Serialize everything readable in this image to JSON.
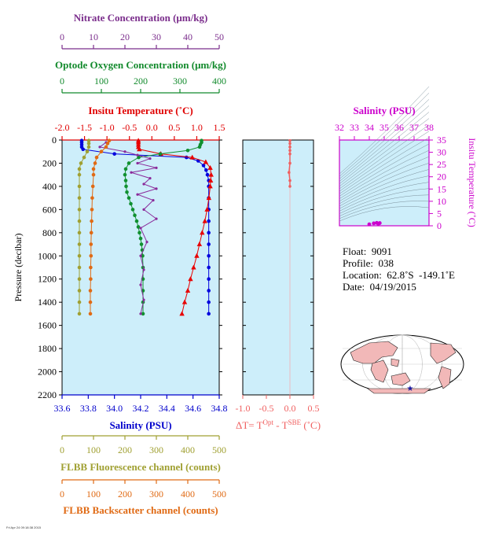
{
  "chart_data": {
    "type": "scatter",
    "main_panel": {
      "ylabel": "Pressure (decibar)",
      "ylim": [
        0,
        2200
      ],
      "yticks": [
        0,
        200,
        400,
        600,
        800,
        1000,
        1200,
        1400,
        1600,
        1800,
        2000,
        2200
      ],
      "background": "#cdeefa",
      "axes": {
        "nitrate": {
          "label": "Nitrate Concentration (μm/kg)",
          "ticks": [
            0,
            10,
            20,
            30,
            40,
            50
          ],
          "range": [
            0,
            50
          ],
          "color": "#7b2e8c"
        },
        "oxygen": {
          "label": "Optode Oxygen Concentration (μm/kg)",
          "ticks": [
            0,
            100,
            200,
            300,
            400
          ],
          "range": [
            0,
            400
          ],
          "color": "#128a2c"
        },
        "temperature": {
          "label": "Insitu Temperature (˚C)",
          "ticks": [
            "-2.0",
            "-1.5",
            "-1.0",
            "-0.5",
            "0.0",
            "0.5",
            "1.0",
            "1.5"
          ],
          "range": [
            -2.0,
            1.5
          ],
          "color": "#e00000"
        },
        "salinity": {
          "label": "Salinity (PSU)",
          "ticks": [
            "33.6",
            "33.8",
            "34.0",
            "34.2",
            "34.4",
            "34.6",
            "34.8"
          ],
          "range": [
            33.6,
            34.8
          ],
          "color": "#0000cc"
        },
        "fluorescence": {
          "label": "FLBB Fluorescence channel (counts)",
          "ticks": [
            0,
            100,
            200,
            300,
            400,
            500
          ],
          "range": [
            0,
            500
          ],
          "color": "#a0a032"
        },
        "backscatter": {
          "label": "FLBB Backscatter channel (counts)",
          "ticks": [
            0,
            100,
            200,
            300,
            400,
            500
          ],
          "range": [
            0,
            500
          ],
          "color": "#e06a14"
        }
      },
      "series": [
        {
          "name": "Salinity",
          "axis": "salinity",
          "color": "#0000dd",
          "marker": "circle",
          "points": [
            [
              33.75,
              5
            ],
            [
              33.75,
              20
            ],
            [
              33.75,
              40
            ],
            [
              33.75,
              60
            ],
            [
              33.76,
              80
            ],
            [
              34.0,
              120
            ],
            [
              34.55,
              150
            ],
            [
              34.64,
              180
            ],
            [
              34.68,
              220
            ],
            [
              34.7,
              260
            ],
            [
              34.71,
              300
            ],
            [
              34.72,
              350
            ],
            [
              34.72,
              400
            ],
            [
              34.72,
              500
            ],
            [
              34.72,
              600
            ],
            [
              34.72,
              700
            ],
            [
              34.72,
              800
            ],
            [
              34.72,
              900
            ],
            [
              34.72,
              1000
            ],
            [
              34.72,
              1100
            ],
            [
              34.72,
              1200
            ],
            [
              34.72,
              1300
            ],
            [
              34.72,
              1400
            ],
            [
              34.72,
              1500
            ]
          ]
        },
        {
          "name": "Temperature",
          "axis": "temperature",
          "color": "#e80000",
          "marker": "triangle",
          "points": [
            [
              -0.3,
              5
            ],
            [
              -0.3,
              20
            ],
            [
              -0.3,
              40
            ],
            [
              -0.3,
              60
            ],
            [
              -0.28,
              80
            ],
            [
              0.2,
              120
            ],
            [
              0.9,
              150
            ],
            [
              1.2,
              190
            ],
            [
              1.3,
              240
            ],
            [
              1.32,
              300
            ],
            [
              1.31,
              350
            ],
            [
              1.3,
              400
            ],
            [
              1.27,
              500
            ],
            [
              1.23,
              600
            ],
            [
              1.18,
              700
            ],
            [
              1.12,
              800
            ],
            [
              1.06,
              900
            ],
            [
              1.0,
              1000
            ],
            [
              0.93,
              1100
            ],
            [
              0.86,
              1200
            ],
            [
              0.8,
              1300
            ],
            [
              0.73,
              1400
            ],
            [
              0.67,
              1500
            ]
          ]
        },
        {
          "name": "Oxygen",
          "axis": "oxygen",
          "color": "#109030",
          "marker": "circle",
          "points": [
            [
              355,
              5
            ],
            [
              355,
              20
            ],
            [
              352,
              40
            ],
            [
              350,
              60
            ],
            [
              320,
              90
            ],
            [
              250,
              120
            ],
            [
              195,
              150
            ],
            [
              170,
              200
            ],
            [
              162,
              250
            ],
            [
              160,
              300
            ],
            [
              162,
              350
            ],
            [
              163,
              400
            ],
            [
              165,
              450
            ],
            [
              170,
              500
            ],
            [
              175,
              550
            ],
            [
              180,
              600
            ],
            [
              185,
              650
            ],
            [
              190,
              700
            ],
            [
              194,
              750
            ],
            [
              197,
              800
            ],
            [
              200,
              850
            ],
            [
              202,
              900
            ],
            [
              204,
              950
            ],
            [
              205,
              1000
            ],
            [
              206,
              1100
            ],
            [
              206,
              1200
            ],
            [
              206,
              1300
            ],
            [
              206,
              1400
            ],
            [
              206,
              1500
            ]
          ]
        },
        {
          "name": "Nitrate",
          "axis": "nitrate",
          "color": "#8a2a9a",
          "marker": "circle",
          "points": [
            [
              14,
              20
            ],
            [
              12,
              60
            ],
            [
              20,
              100
            ],
            [
              24,
              130
            ],
            [
              28,
              160
            ],
            [
              24,
              200
            ],
            [
              30,
              240
            ],
            [
              22,
              280
            ],
            [
              28,
              330
            ],
            [
              26,
              380
            ],
            [
              30,
              420
            ],
            [
              24,
              470
            ],
            [
              29,
              520
            ],
            [
              26,
              600
            ],
            [
              30,
              680
            ],
            [
              25,
              760
            ],
            [
              27,
              880
            ],
            [
              25,
              1000
            ],
            [
              26,
              1120
            ],
            [
              25,
              1250
            ],
            [
              26,
              1380
            ],
            [
              25,
              1500
            ]
          ]
        },
        {
          "name": "Fluorescence",
          "axis": "fluorescence",
          "color": "#a0a032",
          "marker": "circle",
          "points": [
            [
              85,
              5
            ],
            [
              85,
              30
            ],
            [
              85,
              60
            ],
            [
              80,
              100
            ],
            [
              70,
              150
            ],
            [
              60,
              200
            ],
            [
              55,
              250
            ],
            [
              55,
              300
            ],
            [
              55,
              400
            ],
            [
              55,
              500
            ],
            [
              55,
              600
            ],
            [
              55,
              700
            ],
            [
              55,
              800
            ],
            [
              55,
              900
            ],
            [
              55,
              1000
            ],
            [
              55,
              1100
            ],
            [
              55,
              1200
            ],
            [
              55,
              1300
            ],
            [
              55,
              1400
            ],
            [
              55,
              1500
            ]
          ]
        },
        {
          "name": "Backscatter",
          "axis": "backscatter",
          "color": "#e06a14",
          "marker": "circle",
          "points": [
            [
              150,
              5
            ],
            [
              145,
              30
            ],
            [
              140,
              60
            ],
            [
              125,
              100
            ],
            [
              110,
              150
            ],
            [
              105,
              200
            ],
            [
              100,
              250
            ],
            [
              100,
              300
            ],
            [
              98,
              400
            ],
            [
              96,
              500
            ],
            [
              95,
              600
            ],
            [
              94,
              700
            ],
            [
              93,
              800
            ],
            [
              92,
              900
            ],
            [
              92,
              1000
            ],
            [
              91,
              1100
            ],
            [
              91,
              1200
            ],
            [
              90,
              1300
            ],
            [
              90,
              1400
            ],
            [
              90,
              1500
            ]
          ]
        }
      ]
    },
    "delta_panel": {
      "xlabel": "ΔT= T",
      "xlabel_sup1": "Opt",
      "xlabel_mid": " - T",
      "xlabel_sup2": "SBE",
      "xlabel_tail": " (˚C)",
      "ticks": [
        "-1.0",
        "-0.5",
        "0.0",
        "0.5"
      ],
      "range": [
        -1.0,
        0.5
      ],
      "color": "#f06060",
      "points": [
        [
          0.0,
          5
        ],
        [
          0.0,
          30
        ],
        [
          0.0,
          60
        ],
        [
          0.0,
          90
        ],
        [
          0.0,
          120
        ],
        [
          0.0,
          200
        ],
        [
          -0.02,
          280
        ],
        [
          0.0,
          350
        ],
        [
          0.0,
          400
        ]
      ]
    },
    "ts_panel": {
      "title": "Salinity (PSU)",
      "ylabel": "Insitu Temperature (˚C)",
      "xticks": [
        "32",
        "33",
        "34",
        "35",
        "36",
        "37",
        "38"
      ],
      "yticks": [
        "0",
        "5",
        "10",
        "15",
        "20",
        "25",
        "30",
        "35"
      ],
      "xlim": [
        32,
        38
      ],
      "ylim": [
        0,
        35
      ],
      "color": "#cc00cc",
      "points": [
        [
          34.3,
          1.0
        ],
        [
          34.5,
          1.2
        ],
        [
          34.6,
          0.8
        ],
        [
          34.7,
          1.1
        ],
        [
          34.0,
          0.6
        ]
      ]
    }
  },
  "info": {
    "float": "Float:  9091",
    "profile": "Profile:  038",
    "location": "Location:  62.8˚S  -149.1˚E",
    "date": "Date:  04/19/2015"
  },
  "map": {
    "land_color": "#f2b8b8",
    "ocean_color": "#ffffff",
    "marker_color": "#1a1aa0"
  },
  "footer_text": "Fri Apr 24 09:18:38 2015"
}
